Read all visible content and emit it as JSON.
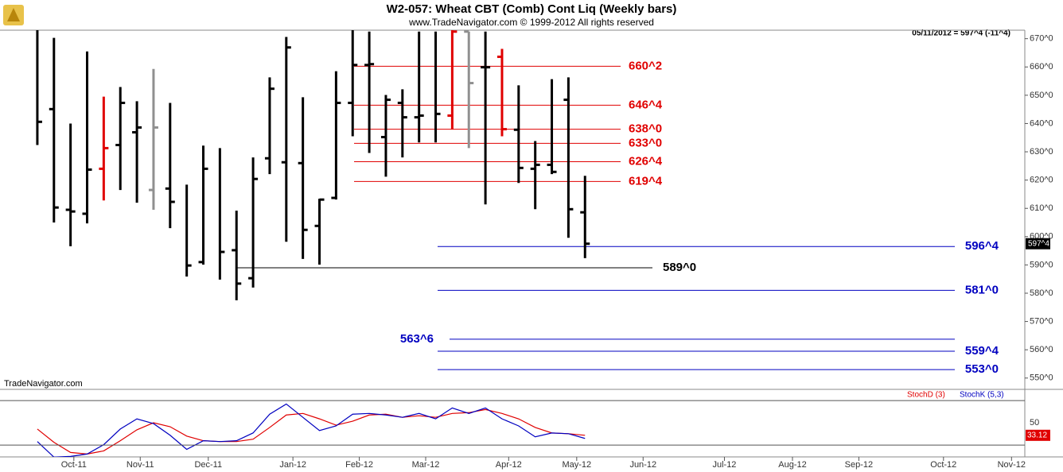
{
  "chart_data": [
    {
      "type": "ohlc",
      "title": "W2-057:  Wheat CBT (Comb) Cont Liq  (Weekly bars)",
      "subtitle": "www.TradeNavigator.com © 1999-2012 All rights reserved",
      "annotation": "05/11/2012 = 597^4 (-11^4)",
      "source": "TradeNavigator.com",
      "open": [
        null,
        645.1,
        609.5,
        608.1,
        624.0,
        632.4,
        636.9,
        616.5,
        617.0,
        null,
        591.0,
        null,
        595.2,
        585.3,
        627.7,
        626.3,
        626.0,
        603.8,
        613.7,
        647.3,
        660.7,
        635.2,
        647.3,
        642.2,
        null,
        642.8,
        672.5,
        659.9,
        663.6,
        637.8,
        624.0,
        625.4,
        648.4,
        608.6
      ],
      "high": [
        673.1,
        670.3,
        640.0,
        665.5,
        649.5,
        652.9,
        647.9,
        659.3,
        647.3,
        618.4,
        632.2,
        631.3,
        609.2,
        628.0,
        656.3,
        670.6,
        649.3,
        613.4,
        658.5,
        673.1,
        672.5,
        650.1,
        652.1,
        672.5,
        672.5,
        673.1,
        672.5,
        672.5,
        666.4,
        653.5,
        633.8,
        655.7,
        656.3,
        621.5
      ],
      "low": [
        632.4,
        605.0,
        596.6,
        604.7,
        612.8,
        616.5,
        612.0,
        609.5,
        603.0,
        585.9,
        590.1,
        584.8,
        577.5,
        582.0,
        622.1,
        598.2,
        592.1,
        590.1,
        613.1,
        635.5,
        629.6,
        621.2,
        628.0,
        633.3,
        633.3,
        638.0,
        631.3,
        611.4,
        635.5,
        619.0,
        609.7,
        622.1,
        599.6,
        592.4
      ],
      "close": [
        640.6,
        610.3,
        608.9,
        623.7,
        631.3,
        647.3,
        638.6,
        638.6,
        612.3,
        589.8,
        624.0,
        594.6,
        583.4,
        620.4,
        652.3,
        666.9,
        602.4,
        613.1,
        647.3,
        660.7,
        661.0,
        648.4,
        642.2,
        642.8,
        643.4,
        672.5,
        654.3,
        659.9,
        638.0,
        624.3,
        625.4,
        622.9,
        609.7,
        597.5
      ],
      "colors": [
        "#000000",
        "#000000",
        "#000000",
        "#000000",
        "#e00000",
        "#000000",
        "#000000",
        "#909090",
        "#000000",
        "#000000",
        "#000000",
        "#000000",
        "#000000",
        "#000000",
        "#000000",
        "#000000",
        "#000000",
        "#000000",
        "#000000",
        "#000000",
        "#000000",
        "#000000",
        "#000000",
        "#000000",
        "#000000",
        "#e00000",
        "#909090",
        "#000000",
        "#e00000",
        "#000000",
        "#000000",
        "#000000",
        "#000000",
        "#000000"
      ],
      "ylim": [
        546,
        673
      ],
      "yticks": [
        {
          "value": 550,
          "label": "550^0"
        },
        {
          "value": 560,
          "label": "560^0"
        },
        {
          "value": 570,
          "label": "570^0"
        },
        {
          "value": 580,
          "label": "580^0"
        },
        {
          "value": 590,
          "label": "590^0"
        },
        {
          "value": 600,
          "label": "600^0"
        },
        {
          "value": 610,
          "label": "610^0"
        },
        {
          "value": 620,
          "label": "620^0"
        },
        {
          "value": 630,
          "label": "630^0"
        },
        {
          "value": 640,
          "label": "640^0"
        },
        {
          "value": 650,
          "label": "650^0"
        },
        {
          "value": 660,
          "label": "660^0"
        },
        {
          "value": 670,
          "label": "670^0"
        }
      ],
      "xlim": [
        -2.25,
        59.5
      ],
      "xticks": [
        {
          "value": 2.2,
          "label": "Oct-11"
        },
        {
          "value": 6.2,
          "label": "Nov-11"
        },
        {
          "value": 10.3,
          "label": "Dec-11"
        },
        {
          "value": 15.4,
          "label": "Jan-12"
        },
        {
          "value": 19.4,
          "label": "Feb-12"
        },
        {
          "value": 23.4,
          "label": "Mar-12"
        },
        {
          "value": 28.4,
          "label": "Apr-12"
        },
        {
          "value": 32.5,
          "label": "May-12"
        },
        {
          "value": 36.5,
          "label": "Jun-12"
        },
        {
          "value": 41.4,
          "label": "Jul-12"
        },
        {
          "value": 45.5,
          "label": "Aug-12"
        },
        {
          "value": 49.5,
          "label": "Sep-12"
        },
        {
          "value": 54.6,
          "label": "Oct-12"
        },
        {
          "value": 58.7,
          "label": "Nov-12"
        }
      ],
      "last_value": {
        "value": 597.5,
        "label": "597^4"
      },
      "levels": [
        {
          "value": 660.25,
          "label": "660^2",
          "color": "#e00000"
        },
        {
          "value": 646.5,
          "label": "646^4",
          "color": "#e00000"
        },
        {
          "value": 638,
          "label": "638^0",
          "color": "#e00000"
        },
        {
          "value": 633,
          "label": "633^0",
          "color": "#e00000"
        },
        {
          "value": 626.5,
          "label": "626^4",
          "color": "#e00000"
        },
        {
          "value": 619.5,
          "label": "619^4",
          "color": "#e00000"
        },
        {
          "value": 596.5,
          "label": "596^4",
          "color": "#0000c0"
        },
        {
          "value": 589,
          "label": "589^0",
          "color": "#000000"
        },
        {
          "value": 581,
          "label": "581^0",
          "color": "#0000c0"
        },
        {
          "value": 563.75,
          "label": "563^6",
          "color": "#0000c0"
        },
        {
          "value": 559.5,
          "label": "559^4",
          "color": "#0000c0"
        },
        {
          "value": 553,
          "label": "553^0",
          "color": "#0000c0"
        }
      ]
    },
    {
      "type": "line",
      "series": [
        {
          "name": "StochD (3)",
          "color": "#e00000",
          "values": [
            41.6,
            23.7,
            10.0,
            7.9,
            12.1,
            25.8,
            40.5,
            50.0,
            44.7,
            32.1,
            25.8,
            24.7,
            24.7,
            27.9,
            43.7,
            60.5,
            62.6,
            55.3,
            46.8,
            52.1,
            60.5,
            61.6,
            57.4,
            59.5,
            57.4,
            62.6,
            63.7,
            67.9,
            62.6,
            55.3,
            43.7,
            36.3,
            35.3,
            33.12
          ]
        },
        {
          "name": "StochK (5,3)",
          "color": "#0000c0",
          "values": [
            24.7,
            3.7,
            4.7,
            7.9,
            20.5,
            41.6,
            55.3,
            48.9,
            33.2,
            14.2,
            25.8,
            24.7,
            25.8,
            36.3,
            61.6,
            75.3,
            57.4,
            39.5,
            45.8,
            61.6,
            62.6,
            60.5,
            57.4,
            62.6,
            55.3,
            70.0,
            62.6,
            70.0,
            55.3,
            45.8,
            31.1,
            36.3,
            35.3,
            28.9
          ]
        }
      ],
      "ylim": [
        4,
        94
      ],
      "yticks": [
        50
      ],
      "levels": [
        20,
        80
      ],
      "last_value": 33.12
    }
  ]
}
